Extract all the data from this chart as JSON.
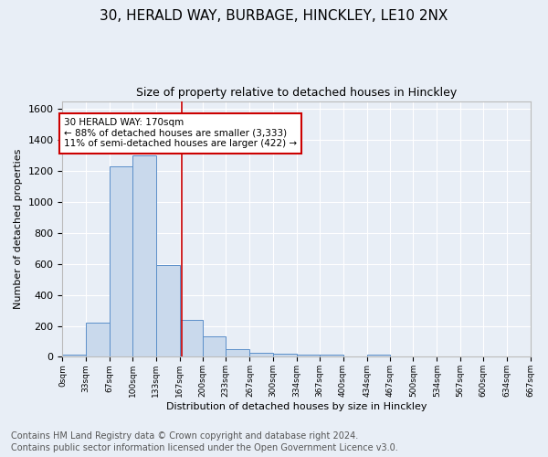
{
  "title1": "30, HERALD WAY, BURBAGE, HINCKLEY, LE10 2NX",
  "title2": "Size of property relative to detached houses in Hinckley",
  "xlabel": "Distribution of detached houses by size in Hinckley",
  "ylabel": "Number of detached properties",
  "footnote1": "Contains HM Land Registry data © Crown copyright and database right 2024.",
  "footnote2": "Contains public sector information licensed under the Open Government Licence v3.0.",
  "bar_edges": [
    0,
    33,
    67,
    100,
    133,
    167,
    200,
    233,
    267,
    300,
    334,
    367,
    400,
    434,
    467,
    500,
    534,
    567,
    600,
    634,
    667
  ],
  "bar_heights": [
    15,
    220,
    1230,
    1300,
    595,
    240,
    135,
    48,
    25,
    22,
    12,
    12,
    0,
    15,
    0,
    0,
    0,
    0,
    0,
    0
  ],
  "bar_color": "#c9d9ec",
  "bar_edge_color": "#5b8fc9",
  "tick_labels": [
    "0sqm",
    "33sqm",
    "67sqm",
    "100sqm",
    "133sqm",
    "167sqm",
    "200sqm",
    "233sqm",
    "267sqm",
    "300sqm",
    "334sqm",
    "367sqm",
    "400sqm",
    "434sqm",
    "467sqm",
    "500sqm",
    "534sqm",
    "567sqm",
    "600sqm",
    "634sqm",
    "667sqm"
  ],
  "vline_x": 170,
  "vline_color": "#cc0000",
  "annotation_text": "30 HERALD WAY: 170sqm\n← 88% of detached houses are smaller (3,333)\n11% of semi-detached houses are larger (422) →",
  "annotation_box_color": "#ffffff",
  "annotation_box_edge_color": "#cc0000",
  "ylim": [
    0,
    1650
  ],
  "yticks": [
    0,
    200,
    400,
    600,
    800,
    1000,
    1200,
    1400,
    1600
  ],
  "bg_color": "#e8eef6",
  "grid_color": "#ffffff",
  "title1_fontsize": 11,
  "title2_fontsize": 9,
  "footnote_fontsize": 7,
  "ann_fontsize": 7.5
}
